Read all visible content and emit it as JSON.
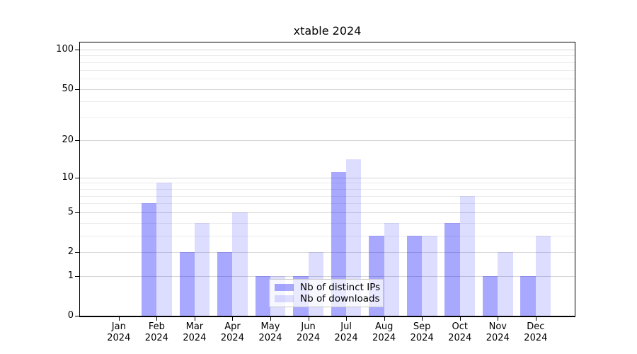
{
  "chart_data": {
    "type": "bar",
    "title": "xtable 2024",
    "y_scale": "log1p",
    "categories": [
      "Jan",
      "Feb",
      "Mar",
      "Apr",
      "May",
      "Jun",
      "Jul",
      "Aug",
      "Sep",
      "Oct",
      "Nov",
      "Dec"
    ],
    "x_sublabel": "2024",
    "series": [
      {
        "name": "Nb of distinct IPs",
        "color": "#0000ff57",
        "values": [
          0,
          6,
          2,
          2,
          1,
          1,
          11,
          3,
          3,
          4,
          1,
          1
        ]
      },
      {
        "name": "Nb of downloads",
        "color": "#0000ff22",
        "values": [
          0,
          9,
          4,
          5,
          1,
          2,
          14,
          4,
          3,
          7,
          2,
          3
        ]
      }
    ],
    "y_ticks": [
      0,
      1,
      2,
      5,
      10,
      20,
      50,
      100
    ],
    "minor_gridlines": [
      3,
      4,
      6,
      7,
      8,
      9,
      30,
      40,
      60,
      70,
      80,
      90
    ],
    "ylim": [
      0,
      110
    ],
    "grid": true,
    "legend_position": "inside-bottom-center",
    "colors": {
      "grid_major": "#d6d6d6",
      "grid_minor": "#ececec",
      "axis": "#000000",
      "background": "#ffffff"
    }
  }
}
